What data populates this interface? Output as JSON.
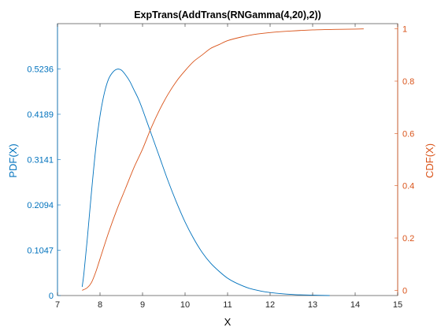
{
  "chart_data": {
    "type": "line",
    "title": "ExpTrans(AddTrans(RNGamma(4,20),2))",
    "xlabel": "X",
    "ylabel_left": "PDF(X)",
    "ylabel_right": "CDF(X)",
    "xlim": [
      7,
      15
    ],
    "ylim_left": [
      0,
      0.6283
    ],
    "ylim_right": [
      -0.02,
      1.02
    ],
    "x_ticks": [
      "7",
      "8",
      "9",
      "10",
      "11",
      "12",
      "13",
      "14",
      "15"
    ],
    "y_left_ticks": [
      "0",
      "0.1047",
      "0.2094",
      "0.3141",
      "0.4189",
      "0.5236"
    ],
    "y_right_ticks": [
      "0",
      "0.2",
      "0.4",
      "0.6",
      "0.8",
      "1"
    ],
    "grid": false,
    "colors": {
      "pdf": "#0072bd",
      "cdf": "#d95319",
      "axis": "#262626"
    },
    "series": [
      {
        "name": "PDF(X)",
        "axis": "left",
        "x": [
          7.58,
          7.62,
          7.7,
          7.8,
          7.9,
          8.0,
          8.1,
          8.2,
          8.3,
          8.4,
          8.5,
          8.6,
          8.7,
          8.8,
          8.9,
          9.0,
          9.2,
          9.4,
          9.6,
          9.8,
          10.0,
          10.2,
          10.4,
          10.6,
          10.8,
          11.0,
          11.2,
          11.5,
          11.8,
          12.0,
          12.3,
          12.6,
          13.0,
          13.4
        ],
        "y": [
          0.02,
          0.05,
          0.13,
          0.24,
          0.34,
          0.415,
          0.467,
          0.5,
          0.516,
          0.523,
          0.521,
          0.51,
          0.495,
          0.475,
          0.455,
          0.43,
          0.375,
          0.32,
          0.265,
          0.215,
          0.17,
          0.132,
          0.1,
          0.075,
          0.056,
          0.04,
          0.029,
          0.017,
          0.01,
          0.007,
          0.004,
          0.002,
          0.001,
          0.0
        ]
      },
      {
        "name": "CDF(X)",
        "axis": "right",
        "x": [
          7.58,
          7.7,
          7.8,
          7.9,
          8.0,
          8.2,
          8.4,
          8.6,
          8.8,
          9.0,
          9.2,
          9.4,
          9.6,
          9.8,
          10.0,
          10.2,
          10.4,
          10.6,
          10.8,
          11.0,
          11.3,
          11.6,
          12.0,
          12.5,
          13.0,
          13.5,
          14.0,
          14.2
        ],
        "y": [
          0.0,
          0.01,
          0.03,
          0.07,
          0.12,
          0.22,
          0.31,
          0.39,
          0.47,
          0.54,
          0.62,
          0.69,
          0.75,
          0.8,
          0.84,
          0.875,
          0.9,
          0.925,
          0.94,
          0.955,
          0.968,
          0.978,
          0.986,
          0.992,
          0.996,
          0.998,
          0.999,
          1.0
        ]
      }
    ]
  }
}
